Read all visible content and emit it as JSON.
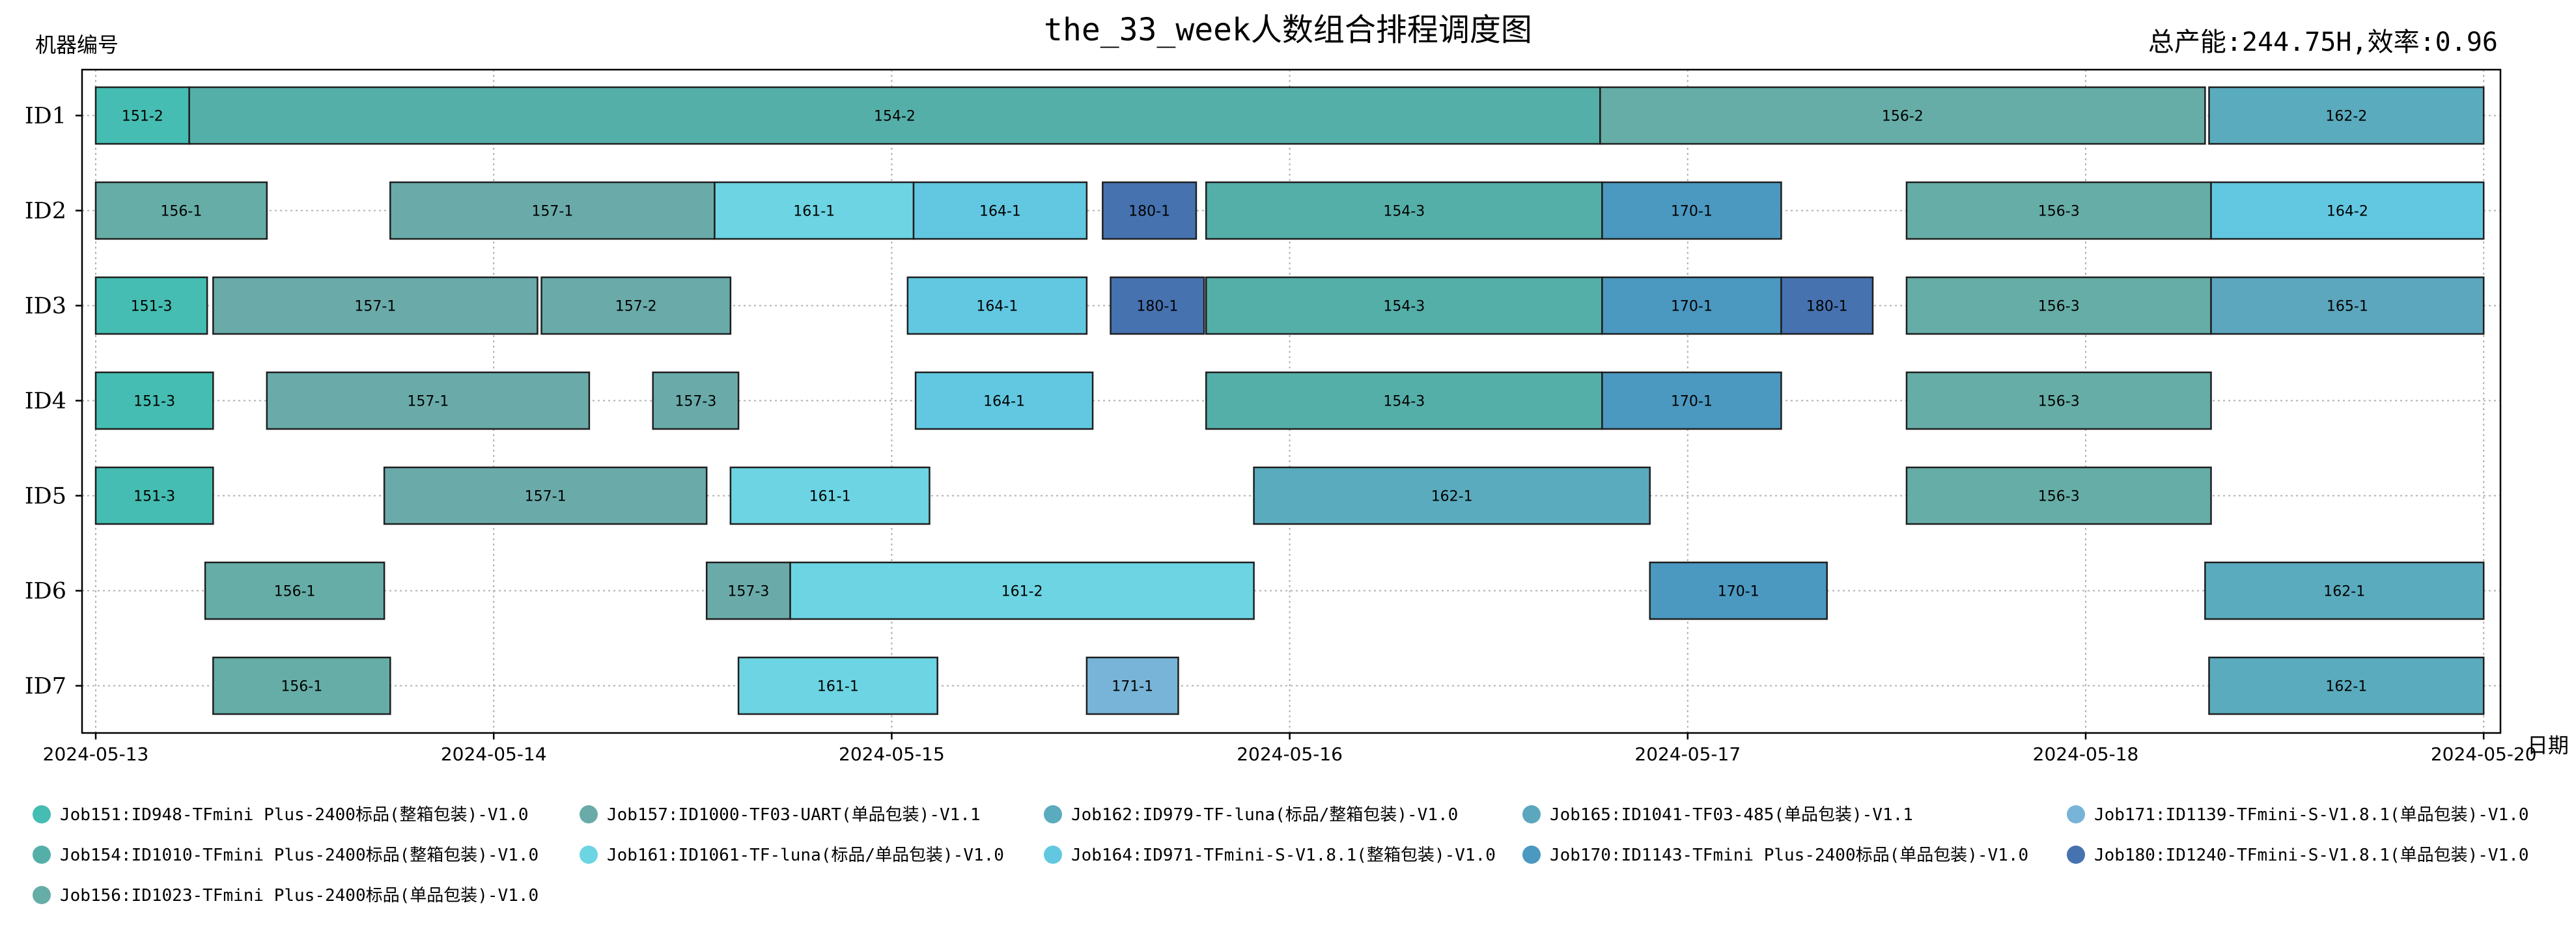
{
  "chart_data": {
    "type": "gantt",
    "title": "the_33_week人数组合排程调度图",
    "subtitle": "总产能:244.75H,效率:0.96",
    "ylabel": "机器编号",
    "xlabel": "日期",
    "x_ticks": [
      "2024-05-13",
      "2024-05-14",
      "2024-05-15",
      "2024-05-16",
      "2024-05-17",
      "2024-05-18",
      "2024-05-20"
    ],
    "x_tick_positions_day": [
      0,
      1,
      2,
      3,
      4,
      5,
      6
    ],
    "xlim_day": [
      -0.03,
      6.05
    ],
    "x_axis_note": "each unit = one labelled day index; last label reads 2024-05-20",
    "grid": true,
    "machines": [
      "ID1",
      "ID2",
      "ID3",
      "ID4",
      "ID5",
      "ID6",
      "ID7"
    ],
    "tasks": [
      {
        "machine": "ID1",
        "label": "151-2",
        "job": "151",
        "start": 0.0,
        "end": 0.235
      },
      {
        "machine": "ID1",
        "label": "154-2",
        "job": "154",
        "start": 0.235,
        "end": 3.78
      },
      {
        "machine": "ID1",
        "label": "156-2",
        "job": "156",
        "start": 3.78,
        "end": 5.3
      },
      {
        "machine": "ID1",
        "label": "162-2",
        "job": "162",
        "start": 5.31,
        "end": 6.0
      },
      {
        "machine": "ID2",
        "label": "156-1",
        "job": "156",
        "start": 0.0,
        "end": 0.43
      },
      {
        "machine": "ID2",
        "label": "157-1",
        "job": "157",
        "start": 0.74,
        "end": 1.555
      },
      {
        "machine": "ID2",
        "label": "161-1",
        "job": "161",
        "start": 1.555,
        "end": 2.055
      },
      {
        "machine": "ID2",
        "label": "164-1",
        "job": "164",
        "start": 2.055,
        "end": 2.49
      },
      {
        "machine": "ID2",
        "label": "180-1",
        "job": "180",
        "start": 2.53,
        "end": 2.765
      },
      {
        "machine": "ID2",
        "label": "154-3",
        "job": "154",
        "start": 2.79,
        "end": 3.785
      },
      {
        "machine": "ID2",
        "label": "170-1",
        "job": "170",
        "start": 3.785,
        "end": 4.235
      },
      {
        "machine": "ID2",
        "label": "156-3",
        "job": "156",
        "start": 4.55,
        "end": 5.315
      },
      {
        "machine": "ID2",
        "label": "164-2",
        "job": "164",
        "start": 5.315,
        "end": 6.0
      },
      {
        "machine": "ID3",
        "label": "151-3",
        "job": "151",
        "start": 0.0,
        "end": 0.28
      },
      {
        "machine": "ID3",
        "label": "157-1",
        "job": "157",
        "start": 0.295,
        "end": 1.11
      },
      {
        "machine": "ID3",
        "label": "157-2",
        "job": "157",
        "start": 1.12,
        "end": 1.595
      },
      {
        "machine": "ID3",
        "label": "164-1",
        "job": "164",
        "start": 2.04,
        "end": 2.49
      },
      {
        "machine": "ID3",
        "label": "180-1",
        "job": "180",
        "start": 2.55,
        "end": 2.785
      },
      {
        "machine": "ID3",
        "label": "154-3",
        "job": "154",
        "start": 2.79,
        "end": 3.785
      },
      {
        "machine": "ID3",
        "label": "170-1",
        "job": "170",
        "start": 3.785,
        "end": 4.235
      },
      {
        "machine": "ID3",
        "label": "180-1",
        "job": "180",
        "start": 4.235,
        "end": 4.465
      },
      {
        "machine": "ID3",
        "label": "156-3",
        "job": "156",
        "start": 4.55,
        "end": 5.315
      },
      {
        "machine": "ID3",
        "label": "165-1",
        "job": "165",
        "start": 5.315,
        "end": 6.0
      },
      {
        "machine": "ID4",
        "label": "151-3",
        "job": "151",
        "start": 0.0,
        "end": 0.295
      },
      {
        "machine": "ID4",
        "label": "157-1",
        "job": "157",
        "start": 0.43,
        "end": 1.24
      },
      {
        "machine": "ID4",
        "label": "157-3",
        "job": "157",
        "start": 1.4,
        "end": 1.615
      },
      {
        "machine": "ID4",
        "label": "164-1",
        "job": "164",
        "start": 2.06,
        "end": 2.505
      },
      {
        "machine": "ID4",
        "label": "154-3",
        "job": "154",
        "start": 2.79,
        "end": 3.785
      },
      {
        "machine": "ID4",
        "label": "170-1",
        "job": "170",
        "start": 3.785,
        "end": 4.235
      },
      {
        "machine": "ID4",
        "label": "156-3",
        "job": "156",
        "start": 4.55,
        "end": 5.315
      },
      {
        "machine": "ID5",
        "label": "151-3",
        "job": "151",
        "start": 0.0,
        "end": 0.295
      },
      {
        "machine": "ID5",
        "label": "157-1",
        "job": "157",
        "start": 0.725,
        "end": 1.535
      },
      {
        "machine": "ID5",
        "label": "161-1",
        "job": "161",
        "start": 1.595,
        "end": 2.095
      },
      {
        "machine": "ID5",
        "label": "162-1",
        "job": "162",
        "start": 2.91,
        "end": 3.905
      },
      {
        "machine": "ID5",
        "label": "156-3",
        "job": "156",
        "start": 4.55,
        "end": 5.315
      },
      {
        "machine": "ID6",
        "label": "156-1",
        "job": "156",
        "start": 0.275,
        "end": 0.725
      },
      {
        "machine": "ID6",
        "label": "157-3",
        "job": "157",
        "start": 1.535,
        "end": 1.745
      },
      {
        "machine": "ID6",
        "label": "161-2",
        "job": "161",
        "start": 1.745,
        "end": 2.91
      },
      {
        "machine": "ID6",
        "label": "170-1",
        "job": "170",
        "start": 3.905,
        "end": 4.35
      },
      {
        "machine": "ID6",
        "label": "162-1",
        "job": "162",
        "start": 5.3,
        "end": 6.0
      },
      {
        "machine": "ID7",
        "label": "156-1",
        "job": "156",
        "start": 0.295,
        "end": 0.74
      },
      {
        "machine": "ID7",
        "label": "161-1",
        "job": "161",
        "start": 1.615,
        "end": 2.115
      },
      {
        "machine": "ID7",
        "label": "171-1",
        "job": "171",
        "start": 2.49,
        "end": 2.72
      },
      {
        "machine": "ID7",
        "label": "162-1",
        "job": "162",
        "start": 5.31,
        "end": 6.0
      }
    ],
    "legend_placement": "bottom",
    "legend": [
      {
        "job": "151",
        "text": "Job151:ID948-TFmini Plus-2400标品(整箱包装)-V1.0",
        "color": "#45bdb2"
      },
      {
        "job": "157",
        "text": "Job157:ID1000-TF03-UART(单品包装)-V1.1",
        "color": "#6aabaa"
      },
      {
        "job": "162",
        "text": "Job162:ID979-TF-luna(标品/整箱包装)-V1.0",
        "color": "#5aabbe"
      },
      {
        "job": "165",
        "text": "Job165:ID1041-TF03-485(单品包装)-V1.1",
        "color": "#5ca6be"
      },
      {
        "job": "171",
        "text": "Job171:ID1139-TFmini-S-V1.8.1(单品包装)-V1.0",
        "color": "#78b4d8"
      },
      {
        "job": "154",
        "text": "Job154:ID1010-TFmini Plus-2400标品(整箱包装)-V1.0",
        "color": "#55afa9"
      },
      {
        "job": "161",
        "text": "Job161:ID1061-TF-luna(标品/单品包装)-V1.0",
        "color": "#6cd4e2"
      },
      {
        "job": "164",
        "text": "Job164:ID971-TFmini-S-V1.8.1(整箱包装)-V1.0",
        "color": "#62c8e2"
      },
      {
        "job": "170",
        "text": "Job170:ID1143-TFmini Plus-2400标品(单品包装)-V1.0",
        "color": "#4b98c0"
      },
      {
        "job": "180",
        "text": "Job180:ID1240-TFmini-S-V1.8.1(单品包装)-V1.0",
        "color": "#4672b0"
      },
      {
        "job": "156",
        "text": "Job156:ID1023-TFmini Plus-2400标品(单品包装)-V1.0",
        "color": "#66ada7"
      }
    ]
  }
}
